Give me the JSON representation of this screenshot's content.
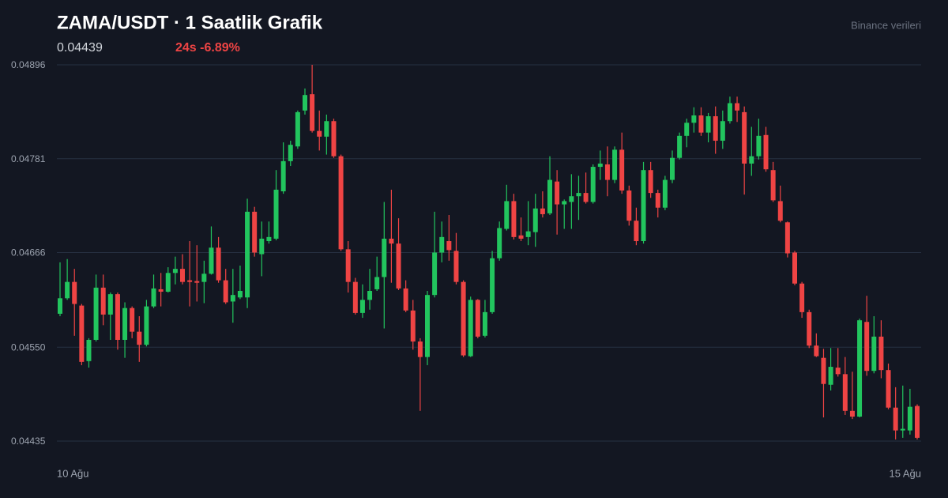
{
  "chart_data": {
    "type": "candlestick",
    "title": "ZAMA/USDT · 1 Saatlik Grafik",
    "price": "0.04439",
    "change": "24s -6.89%",
    "source": "Binance verileri",
    "x_labels": [
      "10 Ağu",
      "15 Ağu"
    ],
    "up_color": "#22c55e",
    "down_color": "#ef4444",
    "grid": true,
    "ylim": [
      0.04435,
      0.04896
    ],
    "yticks": [
      0.04896,
      0.04781,
      0.04666,
      {
        "value": 0.0455,
        "label": "0.04550"
      },
      0.04435
    ],
    "open": [
      0.04591,
      0.0461,
      0.0463,
      0.04601,
      0.04533,
      0.04559,
      0.04623,
      0.0459,
      0.04615,
      0.04559,
      0.04598,
      0.04569,
      0.04553,
      0.046,
      0.04621,
      0.04618,
      0.04641,
      0.04646,
      0.04632,
      0.04631,
      0.0463,
      0.0464,
      0.04672,
      0.04632,
      0.04606,
      0.04611,
      0.04611,
      0.04716,
      0.04664,
      0.0468,
      0.04683,
      0.04741,
      0.04778,
      0.04796,
      0.0484,
      0.0486,
      0.04815,
      0.04808,
      0.04827,
      0.04784,
      0.0467,
      0.0463,
      0.04592,
      0.04608,
      0.04621,
      0.04636,
      0.04683,
      0.04677,
      0.04622,
      0.04595,
      0.04557,
      0.04538,
      0.04614,
      0.04666,
      0.0468,
      0.04668,
      0.0463,
      0.04539,
      0.04608,
      0.04564,
      0.04593,
      0.04659,
      0.04695,
      0.04729,
      0.04687,
      0.04685,
      0.04691,
      0.0472,
      0.04714,
      0.04753,
      0.04725,
      0.04728,
      0.04735,
      0.04739,
      0.04728,
      0.04771,
      0.04774,
      0.04755,
      0.04792,
      0.04742,
      0.04705,
      0.0468,
      0.04767,
      0.04739,
      0.04721,
      0.04755,
      0.04782,
      0.04809,
      0.04825,
      0.04834,
      0.04813,
      0.04833,
      0.04803,
      0.04827,
      0.04849,
      0.04838,
      0.04775,
      0.04784,
      0.0481,
      0.04767,
      0.04729,
      0.04703,
      0.04666,
      0.04628,
      0.04593,
      0.04552,
      0.04537,
      0.04504,
      0.04525,
      0.04517,
      0.04472,
      0.04465,
      0.04581,
      0.04521,
      0.04563,
      0.04522,
      0.04476,
      0.04448,
      0.04448,
      0.04478
    ],
    "high": [
      0.04654,
      0.04658,
      0.04646,
      0.04603,
      0.04561,
      0.04639,
      0.04639,
      0.04617,
      0.04617,
      0.04605,
      0.046,
      0.04588,
      0.04608,
      0.04639,
      0.04641,
      0.04648,
      0.04661,
      0.04664,
      0.0468,
      0.04675,
      0.04656,
      0.04698,
      0.04685,
      0.04646,
      0.04646,
      0.0465,
      0.04732,
      0.04722,
      0.04704,
      0.04704,
      0.04767,
      0.04801,
      0.04803,
      0.0484,
      0.04867,
      0.04896,
      0.0484,
      0.04835,
      0.0483,
      0.04786,
      0.0468,
      0.04635,
      0.04627,
      0.04646,
      0.04661,
      0.04728,
      0.04743,
      0.04708,
      0.04632,
      0.04608,
      0.04561,
      0.04619,
      0.04716,
      0.04704,
      0.04712,
      0.0469,
      0.04632,
      0.04612,
      0.04609,
      0.04608,
      0.04668,
      0.04704,
      0.04749,
      0.04738,
      0.04709,
      0.04729,
      0.04738,
      0.04741,
      0.04784,
      0.04767,
      0.04731,
      0.04762,
      0.0476,
      0.04764,
      0.04774,
      0.04791,
      0.04796,
      0.04796,
      0.04813,
      0.04748,
      0.04721,
      0.04777,
      0.04777,
      0.04743,
      0.0476,
      0.04791,
      0.04813,
      0.0483,
      0.04844,
      0.04844,
      0.04837,
      0.04845,
      0.0484,
      0.04857,
      0.04857,
      0.04845,
      0.0482,
      0.0483,
      0.0482,
      0.04777,
      0.04748,
      0.04704,
      0.04668,
      0.0463,
      0.04596,
      0.04567,
      0.04548,
      0.04549,
      0.04549,
      0.04538,
      0.0452,
      0.04585,
      0.04613,
      0.04588,
      0.04583,
      0.0453,
      0.04501,
      0.04503,
      0.04499,
      0.0448
    ],
    "low": [
      0.04588,
      0.04608,
      0.04564,
      0.04528,
      0.04525,
      0.04557,
      0.04577,
      0.04559,
      0.04547,
      0.04537,
      0.04561,
      0.04532,
      0.04551,
      0.04598,
      0.046,
      0.04617,
      0.04627,
      0.04627,
      0.046,
      0.04606,
      0.04604,
      0.04639,
      0.04629,
      0.04603,
      0.0458,
      0.04609,
      0.04598,
      0.04661,
      0.04637,
      0.04677,
      0.04681,
      0.04738,
      0.04772,
      0.04793,
      0.04835,
      0.04813,
      0.04791,
      0.04786,
      0.04782,
      0.04668,
      0.04617,
      0.0459,
      0.04586,
      0.04596,
      0.04619,
      0.04573,
      0.04629,
      0.0462,
      0.04593,
      0.04547,
      0.04472,
      0.04528,
      0.04611,
      0.04654,
      0.04656,
      0.04627,
      0.04538,
      0.04538,
      0.04561,
      0.04562,
      0.04591,
      0.04656,
      0.04693,
      0.04682,
      0.0468,
      0.04675,
      0.04673,
      0.04709,
      0.04712,
      0.04688,
      0.04695,
      0.04695,
      0.04706,
      0.04726,
      0.04726,
      0.04755,
      0.04735,
      0.04751,
      0.04738,
      0.04699,
      0.04675,
      0.04677,
      0.04733,
      0.04709,
      0.04718,
      0.04751,
      0.0478,
      0.04795,
      0.04813,
      0.04809,
      0.04801,
      0.04787,
      0.04793,
      0.04824,
      0.04826,
      0.04737,
      0.0476,
      0.0478,
      0.04765,
      0.04728,
      0.04703,
      0.0466,
      0.04626,
      0.04586,
      0.04549,
      0.04538,
      0.04464,
      0.04497,
      0.04514,
      0.04467,
      0.04462,
      0.04464,
      0.04515,
      0.04518,
      0.04512,
      0.04474,
      0.04437,
      0.04439,
      0.04443,
      0.04437
    ],
    "close": [
      0.0461,
      0.0463,
      0.04603,
      0.04532,
      0.04559,
      0.04623,
      0.0459,
      0.04615,
      0.04559,
      0.04598,
      0.04569,
      0.04553,
      0.046,
      0.04622,
      0.04618,
      0.04641,
      0.04646,
      0.0463,
      0.0463,
      0.04629,
      0.0464,
      0.04672,
      0.04632,
      0.04605,
      0.04614,
      0.04619,
      0.04716,
      0.04666,
      0.04683,
      0.04685,
      0.04743,
      0.04778,
      0.04798,
      0.04838,
      0.04859,
      0.04815,
      0.04808,
      0.04827,
      0.04784,
      0.0467,
      0.0463,
      0.04592,
      0.04608,
      0.04619,
      0.04636,
      0.04683,
      0.04677,
      0.04622,
      0.04595,
      0.04557,
      0.04538,
      0.04614,
      0.04666,
      0.04685,
      0.04669,
      0.0463,
      0.0454,
      0.04608,
      0.04563,
      0.04593,
      0.04659,
      0.04696,
      0.04729,
      0.04685,
      0.04683,
      0.04692,
      0.0472,
      0.04713,
      0.04755,
      0.04725,
      0.04729,
      0.04735,
      0.04739,
      0.04728,
      0.04771,
      0.04775,
      0.04755,
      0.04792,
      0.04742,
      0.04705,
      0.0468,
      0.04767,
      0.04739,
      0.04721,
      0.04755,
      0.04782,
      0.04809,
      0.04825,
      0.04834,
      0.04813,
      0.04833,
      0.04803,
      0.04827,
      0.04849,
      0.0484,
      0.04775,
      0.04784,
      0.04809,
      0.04768,
      0.0473,
      0.04705,
      0.04665,
      0.04628,
      0.04593,
      0.04552,
      0.04539,
      0.04505,
      0.04526,
      0.04517,
      0.04472,
      0.04465,
      0.04583,
      0.04521,
      0.04563,
      0.04522,
      0.04476,
      0.04448,
      0.0445,
      0.04477,
      0.04439
    ]
  }
}
